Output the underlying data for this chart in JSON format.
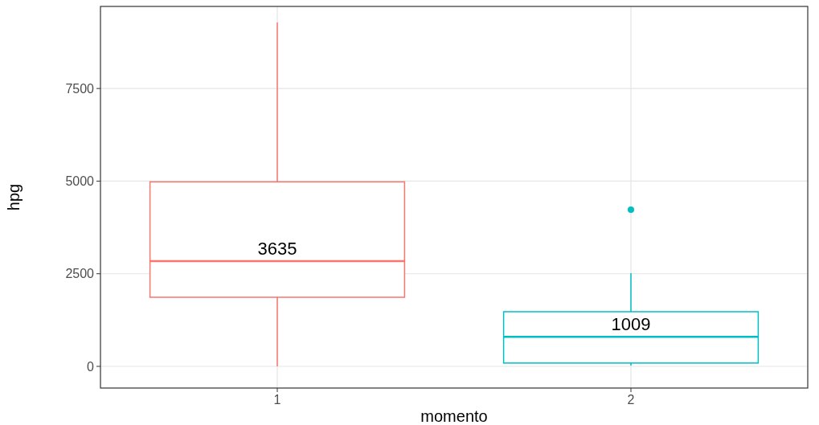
{
  "chart_data": {
    "type": "box",
    "xlabel": "momento",
    "ylabel": "hpg",
    "categories": [
      "1",
      "2"
    ],
    "series": [
      {
        "colors": [
          "#f8766d",
          "#00bfc4"
        ],
        "boxes": [
          {
            "low": 0,
            "q1": 1865,
            "median": 2840,
            "q3": 4980,
            "high": 9280
          },
          {
            "low": 20,
            "q1": 90,
            "median": 800,
            "q3": 1475,
            "high": 2515,
            "outliers": [
              4230
            ]
          }
        ]
      }
    ],
    "ylim": [
      -585,
      9715
    ],
    "yticks": [
      0,
      2500,
      5000,
      7500
    ],
    "grid": true,
    "annotations": [
      "3635",
      "1009"
    ]
  }
}
